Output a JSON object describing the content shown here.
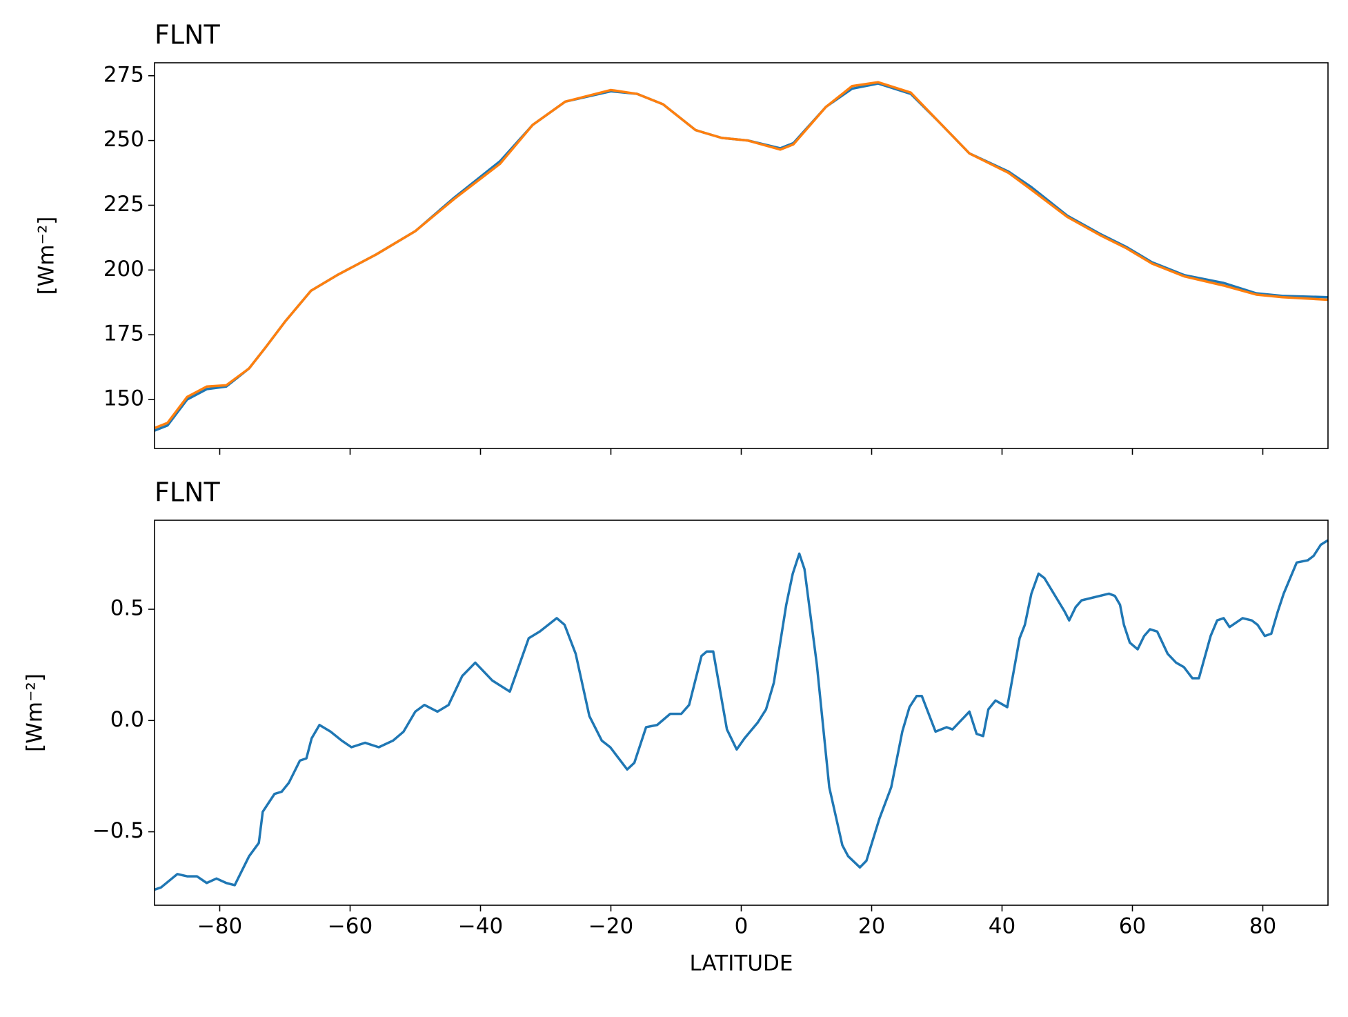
{
  "chart_data": [
    {
      "type": "line",
      "title": "FLNT",
      "ylabel": "[Wm⁻²]",
      "x": [
        -90,
        -88,
        -85,
        -82,
        -79,
        -75.5,
        -73,
        -70,
        -66,
        -62,
        -56,
        -50,
        -44,
        -37,
        -32,
        -27,
        -20,
        -16,
        -12,
        -7,
        -3,
        1,
        6,
        8,
        13,
        17,
        21,
        26,
        30,
        35,
        41,
        44.5,
        50,
        55,
        59,
        63,
        68,
        74,
        79,
        83,
        90
      ],
      "series": [
        {
          "color": "#1f77b4",
          "values": [
            138,
            140,
            150,
            154,
            155,
            162,
            170,
            180,
            192,
            198,
            206,
            215,
            228,
            242,
            256,
            265,
            269,
            268,
            264,
            254,
            251,
            250,
            247,
            249,
            263,
            270,
            272,
            268,
            258,
            245,
            238,
            232,
            221,
            214,
            209,
            203,
            198,
            195,
            191,
            190,
            189.5
          ]
        },
        {
          "color": "#ff7f0e",
          "values": [
            139,
            141,
            151,
            155,
            155.5,
            162,
            170,
            180,
            192,
            198,
            206,
            215,
            227.5,
            241,
            256,
            265,
            269.5,
            268,
            264,
            254,
            251,
            250,
            246.5,
            248.5,
            263,
            271,
            272.5,
            268.5,
            258,
            245,
            237.5,
            231,
            220.5,
            213.5,
            208.5,
            202.5,
            197.5,
            194,
            190.5,
            189.5,
            188.5
          ]
        }
      ],
      "xlim": [
        -90,
        90
      ],
      "ylim": [
        131.1,
        280
      ],
      "xticks": [
        -80,
        -60,
        -40,
        -20,
        0,
        20,
        40,
        60,
        80
      ],
      "yticks": [
        150,
        175,
        200,
        225,
        250,
        275
      ]
    },
    {
      "type": "line",
      "title": "FLNT",
      "ylabel": "[Wm⁻²]",
      "xlabel": "LATITUDE",
      "x": [
        -90,
        -89,
        -86.5,
        -85,
        -83.5,
        -82,
        -80.5,
        -79,
        -77.7,
        -75.5,
        -74,
        -73.4,
        -71.6,
        -70.5,
        -69.4,
        -67.7,
        -66.7,
        -65.9,
        -64.7,
        -63,
        -61.3,
        -59.8,
        -57.7,
        -55.6,
        -53.4,
        -51.8,
        -50,
        -48.6,
        -46.6,
        -44.9,
        -42.8,
        -40.8,
        -38.2,
        -35.5,
        -32.6,
        -30.9,
        -28.3,
        -27.1,
        -25.4,
        -23.3,
        -21.4,
        -20.1,
        -17.5,
        -16.4,
        -14.6,
        -12.9,
        -10.9,
        -9.2,
        -8,
        -6.1,
        -5.3,
        -4.3,
        -2.2,
        -0.7,
        0.5,
        2.5,
        3.8,
        5,
        6.9,
        7.9,
        8.9,
        9.7,
        11.6,
        13.5,
        15.5,
        16.4,
        18.2,
        19.2,
        21.2,
        23,
        24.7,
        25.8,
        26.9,
        27.7,
        29.8,
        31.5,
        32.4,
        35,
        36.1,
        37.1,
        37.9,
        39,
        40.8,
        42.7,
        43.5,
        44.5,
        45.6,
        46.5,
        49.6,
        50.3,
        51.3,
        52.2,
        56.4,
        57.3,
        58.1,
        58.7,
        59.6,
        60.8,
        61.8,
        62.7,
        63.8,
        65.4,
        66.7,
        67.9,
        69.2,
        70.2,
        72,
        73,
        74,
        74.9,
        76.9,
        78.3,
        79.2,
        80.3,
        81.3,
        82.3,
        83.2,
        85.2,
        86.9,
        87.8,
        88.9,
        90
      ],
      "series": [
        {
          "color": "#1f77b4",
          "values": [
            -0.76,
            -0.75,
            -0.69,
            -0.7,
            -0.7,
            -0.73,
            -0.71,
            -0.73,
            -0.74,
            -0.61,
            -0.55,
            -0.41,
            -0.33,
            -0.32,
            -0.28,
            -0.18,
            -0.17,
            -0.08,
            -0.02,
            -0.05,
            -0.09,
            -0.12,
            -0.1,
            -0.12,
            -0.09,
            -0.05,
            0.04,
            0.07,
            0.04,
            0.07,
            0.2,
            0.26,
            0.18,
            0.13,
            0.37,
            0.4,
            0.46,
            0.43,
            0.3,
            0.02,
            -0.09,
            -0.12,
            -0.22,
            -0.19,
            -0.03,
            -0.02,
            0.03,
            0.03,
            0.07,
            0.29,
            0.31,
            0.31,
            -0.04,
            -0.13,
            -0.08,
            -0.01,
            0.05,
            0.17,
            0.52,
            0.66,
            0.75,
            0.68,
            0.25,
            -0.3,
            -0.56,
            -0.61,
            -0.66,
            -0.63,
            -0.44,
            -0.3,
            -0.05,
            0.06,
            0.11,
            0.11,
            -0.05,
            -0.03,
            -0.04,
            0.04,
            -0.06,
            -0.07,
            0.05,
            0.09,
            0.06,
            0.37,
            0.43,
            0.57,
            0.66,
            0.64,
            0.49,
            0.45,
            0.51,
            0.54,
            0.57,
            0.56,
            0.52,
            0.43,
            0.35,
            0.32,
            0.38,
            0.41,
            0.4,
            0.3,
            0.26,
            0.24,
            0.19,
            0.19,
            0.38,
            0.45,
            0.46,
            0.42,
            0.46,
            0.45,
            0.43,
            0.38,
            0.39,
            0.49,
            0.57,
            0.71,
            0.72,
            0.74,
            0.79,
            0.81
          ]
        }
      ],
      "xlim": [
        -90,
        90
      ],
      "ylim": [
        -0.83,
        0.9
      ],
      "xticks": [
        {
          "value": -80,
          "label": "−80"
        },
        {
          "value": -60,
          "label": "−60"
        },
        {
          "value": -40,
          "label": "−40"
        },
        {
          "value": -20,
          "label": "−20"
        },
        0,
        20,
        40,
        60,
        80
      ],
      "yticks": [
        {
          "value": -0.5,
          "label": "−0.5"
        },
        {
          "value": 0,
          "label": "0.0"
        },
        0.5
      ]
    }
  ]
}
